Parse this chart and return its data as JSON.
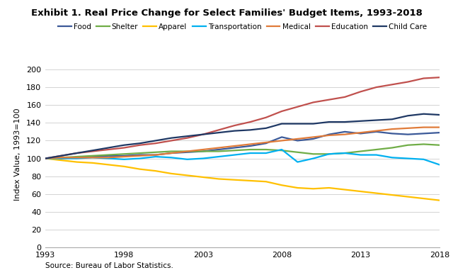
{
  "title": "Exhibit 1. Real Price Change for Select Families' Budget Items, 1993-2018",
  "ylabel": "Index Value, 1993=100",
  "source": "Source: Bureau of Labor Statistics.",
  "xlim": [
    1993,
    2018
  ],
  "ylim": [
    0,
    210
  ],
  "yticks": [
    0,
    20,
    40,
    60,
    80,
    100,
    120,
    140,
    160,
    180,
    200
  ],
  "xticks": [
    1993,
    1998,
    2003,
    2008,
    2013,
    2018
  ],
  "series": {
    "Food": {
      "color": "#3B5998",
      "linewidth": 1.6,
      "years": [
        1993,
        1994,
        1995,
        1996,
        1997,
        1998,
        1999,
        2000,
        2001,
        2002,
        2003,
        2004,
        2005,
        2006,
        2007,
        2008,
        2009,
        2010,
        2011,
        2012,
        2013,
        2014,
        2015,
        2016,
        2017,
        2018
      ],
      "values": [
        100,
        100,
        101,
        102,
        103,
        103,
        104,
        104,
        106,
        107,
        108,
        110,
        112,
        114,
        117,
        124,
        120,
        122,
        127,
        130,
        128,
        130,
        128,
        127,
        128,
        129
      ]
    },
    "Shelter": {
      "color": "#70AD47",
      "linewidth": 1.6,
      "years": [
        1993,
        1994,
        1995,
        1996,
        1997,
        1998,
        1999,
        2000,
        2001,
        2002,
        2003,
        2004,
        2005,
        2006,
        2007,
        2008,
        2009,
        2010,
        2011,
        2012,
        2013,
        2014,
        2015,
        2016,
        2017,
        2018
      ],
      "values": [
        100,
        101,
        102,
        103,
        104,
        105,
        106,
        107,
        108,
        108,
        108,
        108,
        109,
        110,
        110,
        109,
        107,
        105,
        105,
        106,
        108,
        110,
        112,
        115,
        116,
        115
      ]
    },
    "Apparel": {
      "color": "#FFC000",
      "linewidth": 1.6,
      "years": [
        1993,
        1994,
        1995,
        1996,
        1997,
        1998,
        1999,
        2000,
        2001,
        2002,
        2003,
        2004,
        2005,
        2006,
        2007,
        2008,
        2009,
        2010,
        2011,
        2012,
        2013,
        2014,
        2015,
        2016,
        2017,
        2018
      ],
      "values": [
        100,
        98,
        96,
        95,
        93,
        91,
        88,
        86,
        83,
        81,
        79,
        77,
        76,
        75,
        74,
        70,
        67,
        66,
        67,
        65,
        63,
        61,
        59,
        57,
        55,
        53
      ]
    },
    "Transportation": {
      "color": "#00B0F0",
      "linewidth": 1.6,
      "years": [
        1993,
        1994,
        1995,
        1996,
        1997,
        1998,
        1999,
        2000,
        2001,
        2002,
        2003,
        2004,
        2005,
        2006,
        2007,
        2008,
        2009,
        2010,
        2011,
        2012,
        2013,
        2014,
        2015,
        2016,
        2017,
        2018
      ],
      "values": [
        100,
        100,
        100,
        101,
        100,
        99,
        100,
        102,
        101,
        99,
        100,
        102,
        104,
        106,
        106,
        110,
        96,
        100,
        105,
        106,
        104,
        104,
        101,
        100,
        99,
        93
      ]
    },
    "Medical": {
      "color": "#E07B39",
      "linewidth": 1.6,
      "years": [
        1993,
        1994,
        1995,
        1996,
        1997,
        1998,
        1999,
        2000,
        2001,
        2002,
        2003,
        2004,
        2005,
        2006,
        2007,
        2008,
        2009,
        2010,
        2011,
        2012,
        2013,
        2014,
        2015,
        2016,
        2017,
        2018
      ],
      "values": [
        100,
        101,
        101,
        101,
        101,
        102,
        103,
        104,
        106,
        108,
        110,
        112,
        114,
        116,
        118,
        120,
        122,
        124,
        126,
        127,
        129,
        131,
        133,
        134,
        135,
        135
      ]
    },
    "Education": {
      "color": "#C0504D",
      "linewidth": 1.6,
      "years": [
        1993,
        1994,
        1995,
        1996,
        1997,
        1998,
        1999,
        2000,
        2001,
        2002,
        2003,
        2004,
        2005,
        2006,
        2007,
        2008,
        2009,
        2010,
        2011,
        2012,
        2013,
        2014,
        2015,
        2016,
        2017,
        2018
      ],
      "values": [
        100,
        103,
        106,
        108,
        110,
        112,
        115,
        117,
        120,
        123,
        127,
        132,
        137,
        141,
        146,
        153,
        158,
        163,
        166,
        169,
        175,
        180,
        183,
        186,
        190,
        191
      ]
    },
    "Child Care": {
      "color": "#1F3864",
      "linewidth": 1.6,
      "years": [
        1993,
        1994,
        1995,
        1996,
        1997,
        1998,
        1999,
        2000,
        2001,
        2002,
        2003,
        2004,
        2005,
        2006,
        2007,
        2008,
        2009,
        2010,
        2011,
        2012,
        2013,
        2014,
        2015,
        2016,
        2017,
        2018
      ],
      "values": [
        100,
        103,
        106,
        109,
        112,
        115,
        117,
        120,
        123,
        125,
        127,
        129,
        131,
        132,
        134,
        139,
        139,
        139,
        141,
        141,
        142,
        143,
        144,
        148,
        150,
        149
      ]
    }
  },
  "legend_order": [
    "Food",
    "Shelter",
    "Apparel",
    "Transportation",
    "Medical",
    "Education",
    "Child Care"
  ]
}
